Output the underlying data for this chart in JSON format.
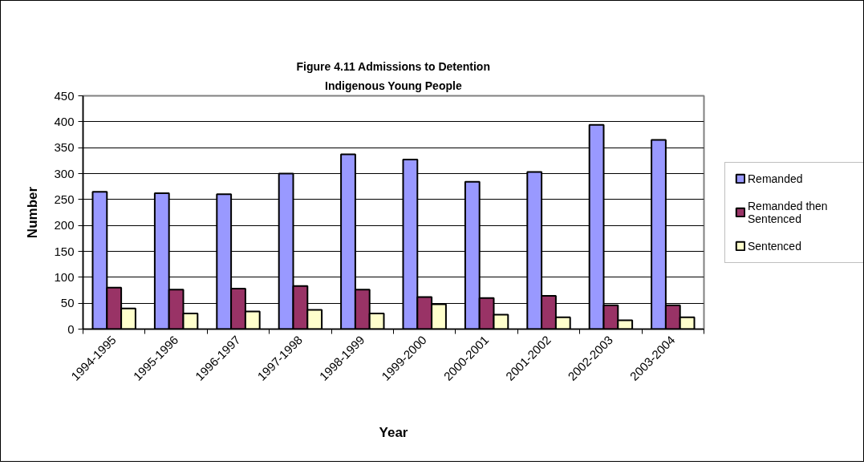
{
  "chart_data": {
    "type": "bar",
    "title": "Figure 4.11 Admissions to Detention",
    "subtitle": "Indigenous Young People",
    "xlabel": "Year",
    "ylabel": "Number",
    "categories": [
      "1994-1995",
      "1995-1996",
      "1996-1997",
      "1997-1998",
      "1998-1999",
      "1999-2000",
      "2000-2001",
      "2001-2002",
      "2002-2003",
      "2003-2004"
    ],
    "series": [
      {
        "name": "Remanded",
        "color": "#9999ff",
        "values": [
          265,
          262,
          260,
          300,
          337,
          327,
          284,
          303,
          394,
          365
        ]
      },
      {
        "name": "Remanded then Sentenced",
        "color": "#993366",
        "values": [
          80,
          76,
          78,
          83,
          76,
          62,
          60,
          64,
          46,
          46
        ]
      },
      {
        "name": "Sentenced",
        "color": "#ffffcc",
        "values": [
          40,
          30,
          34,
          37,
          30,
          48,
          28,
          23,
          17,
          23
        ]
      }
    ],
    "ylim": [
      0,
      450
    ],
    "yticks": [
      0,
      50,
      100,
      150,
      200,
      250,
      300,
      350,
      400,
      450
    ],
    "grid": "y",
    "legend": "right"
  }
}
